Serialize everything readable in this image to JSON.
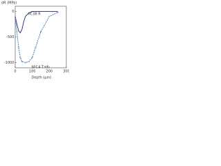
{
  "chart_data": {
    "type": "line",
    "y_label": "σR (MPa)",
    "x_label": "Depth (μm)",
    "xlim": [
      0,
      300
    ],
    "xticks": [
      0,
      100,
      200,
      300
    ],
    "ylim": [
      -1100,
      100
    ],
    "yticks": [
      0,
      -500,
      -1000
    ],
    "series": [
      {
        "name": "XC38 R",
        "color": "#1a2a6e",
        "dashed": false,
        "x": [
          0,
          10,
          20,
          30,
          40,
          50,
          60,
          80,
          100,
          150,
          200,
          250
        ],
        "values": [
          -100,
          -250,
          -380,
          -420,
          -350,
          -200,
          -100,
          -30,
          0,
          0,
          0,
          0
        ]
      },
      {
        "name": "SFC4 T+R",
        "color": "#3a6fb0",
        "dashed": true,
        "x": [
          0,
          10,
          20,
          30,
          40,
          60,
          80,
          100,
          120,
          150,
          200,
          250
        ],
        "values": [
          -150,
          -400,
          -700,
          -900,
          -980,
          -1000,
          -980,
          -900,
          -700,
          -400,
          -100,
          -20
        ]
      }
    ]
  }
}
